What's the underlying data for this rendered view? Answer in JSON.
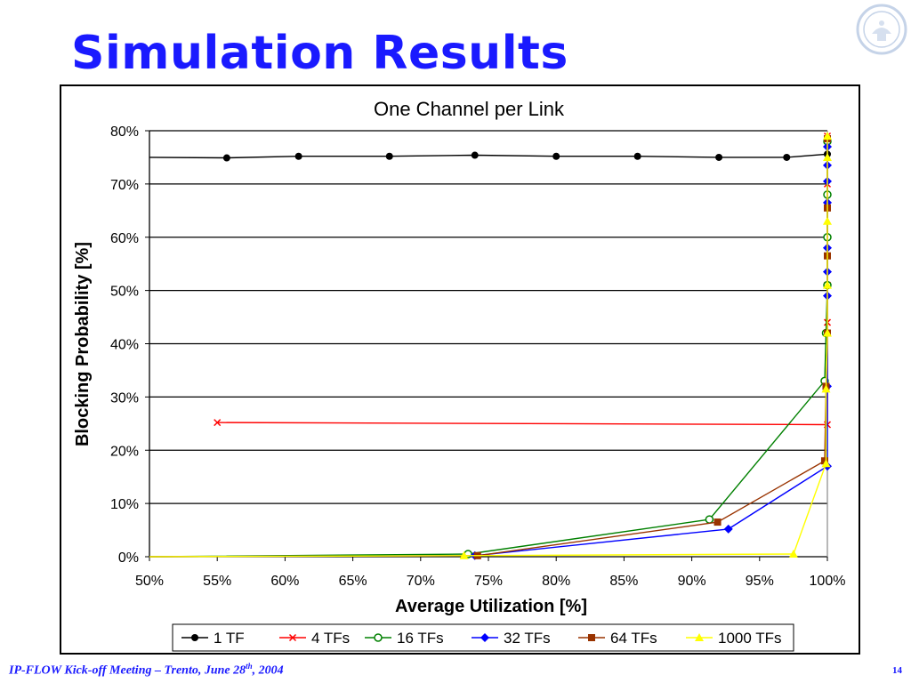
{
  "slide": {
    "title": "Simulation Results",
    "footer": {
      "event": "IP-FLOW Kick-off Meeting – Trento, June 28",
      "suffix": "th",
      "year": ", 2004"
    },
    "page_number": "14"
  },
  "colors": {
    "title": "#1a1aff",
    "footer": "#1a1aff",
    "logo": "#c5d3e8"
  },
  "logo_icon": "university-seal-icon",
  "chart_data": {
    "type": "line",
    "title": "One Channel per Link",
    "xlabel": "Average Utilization [%]",
    "ylabel": "Blocking Probability [%]",
    "xlim": [
      0.5,
      1.0
    ],
    "ylim": [
      0,
      0.8
    ],
    "x_ticks": [
      "50%",
      "55%",
      "60%",
      "65%",
      "70%",
      "75%",
      "80%",
      "85%",
      "90%",
      "95%",
      "100%"
    ],
    "y_ticks": [
      "0%",
      "10%",
      "20%",
      "30%",
      "40%",
      "50%",
      "60%",
      "70%",
      "80%"
    ],
    "grid": "horizontal",
    "legend_position": "bottom",
    "series": [
      {
        "name": "1 TF",
        "color": "#000000",
        "marker": "circle",
        "x": [
          0.5,
          0.557,
          0.61,
          0.677,
          0.74,
          0.8,
          0.86,
          0.92,
          0.97,
          1.0
        ],
        "y": [
          0.75,
          0.749,
          0.752,
          0.752,
          0.754,
          0.752,
          0.752,
          0.75,
          0.75,
          0.756
        ]
      },
      {
        "name": "4 TFs",
        "color": "#ff0000",
        "marker": "x",
        "x": [
          0.55,
          1.0,
          1.0,
          1.0,
          1.0,
          1.0
        ],
        "y": [
          0.252,
          0.248,
          0.44,
          0.51,
          0.7,
          0.79
        ]
      },
      {
        "name": "16 TFs",
        "color": "#008000",
        "marker": "open-circle",
        "x": [
          0.5,
          0.735,
          0.913,
          0.998,
          0.999,
          1.0,
          1.0,
          1.0,
          1.0
        ],
        "y": [
          0.0,
          0.005,
          0.07,
          0.33,
          0.42,
          0.51,
          0.6,
          0.68,
          0.78
        ]
      },
      {
        "name": "32 TFs",
        "color": "#0000ff",
        "marker": "diamond",
        "x": [
          0.5,
          0.74,
          0.927,
          1.0,
          1.0,
          1.0,
          1.0,
          1.0,
          1.0,
          1.0,
          1.0,
          1.0
        ],
        "y": [
          0.0,
          0.002,
          0.052,
          0.17,
          0.32,
          0.49,
          0.535,
          0.58,
          0.665,
          0.705,
          0.735,
          0.77
        ]
      },
      {
        "name": "64 TFs",
        "color": "#993300",
        "marker": "square",
        "x": [
          0.5,
          0.742,
          0.919,
          0.998,
          0.999,
          1.0,
          1.0,
          1.0,
          1.0
        ],
        "y": [
          0.0,
          0.002,
          0.065,
          0.18,
          0.32,
          0.42,
          0.565,
          0.655,
          0.785
        ]
      },
      {
        "name": "1000 TFs",
        "color": "#ffff00",
        "marker": "triangle",
        "x": [
          0.5,
          0.732,
          0.975,
          0.999,
          0.999,
          1.0,
          1.0,
          1.0,
          1.0,
          1.0
        ],
        "y": [
          0.0,
          0.002,
          0.005,
          0.175,
          0.315,
          0.42,
          0.51,
          0.63,
          0.75,
          0.79
        ]
      }
    ]
  }
}
